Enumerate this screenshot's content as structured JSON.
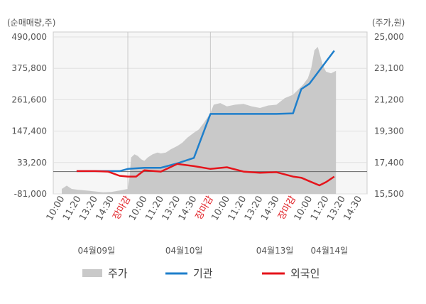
{
  "chart_data": {
    "type": "line",
    "left_axis_title": "(순매매량,주)",
    "right_axis_title": "(주가,원)",
    "y_left": {
      "ticks": [
        "490,000",
        "375,800",
        "261,600",
        "147,400",
        "33,200",
        "-81,000"
      ],
      "tick_values": [
        490000,
        375800,
        261600,
        147400,
        33200,
        -81000
      ],
      "range": [
        -81000,
        490000
      ]
    },
    "y_right": {
      "ticks": [
        "25,000",
        "23,100",
        "21,200",
        "19,300",
        "17,400",
        "15,500"
      ],
      "tick_values": [
        25000,
        23100,
        21200,
        19300,
        17400,
        15500
      ],
      "range": [
        15500,
        25000
      ]
    },
    "x_ticks": [
      {
        "label": "10:00",
        "red": false
      },
      {
        "label": "11:20",
        "red": false
      },
      {
        "label": "13:20",
        "red": false
      },
      {
        "label": "14:30",
        "red": false
      },
      {
        "label": "장마감",
        "red": true
      },
      {
        "label": "10:00",
        "red": false
      },
      {
        "label": "11:20",
        "red": false
      },
      {
        "label": "13:20",
        "red": false
      },
      {
        "label": "14:30",
        "red": false
      },
      {
        "label": "장마감",
        "red": true
      },
      {
        "label": "10:00",
        "red": false
      },
      {
        "label": "11:20",
        "red": false
      },
      {
        "label": "13:20",
        "red": false
      },
      {
        "label": "14:30",
        "red": false
      },
      {
        "label": "장마감",
        "red": true
      },
      {
        "label": "10:00",
        "red": false
      },
      {
        "label": "11:20",
        "red": false
      },
      {
        "label": "13:20",
        "red": false
      },
      {
        "label": "14:30",
        "red": false
      }
    ],
    "dates": [
      "04월09일",
      "04월10일",
      "04월13일",
      "04월14일"
    ],
    "legend": [
      "주가",
      "기관",
      "외국인"
    ],
    "colors": {
      "price": "#c9c9c9",
      "institution": "#1f7fcb",
      "foreign": "#e5141b"
    },
    "institution": {
      "name": "기관",
      "x": [
        0.9,
        2.0,
        3.0,
        3.5,
        4.0,
        4.5,
        5.0,
        6.0,
        7.0,
        8.0,
        9.0,
        10.0,
        11.0,
        12.0,
        13.0,
        14.0,
        14.5,
        15.0,
        16.0,
        16.5
      ],
      "values": [
        2000,
        2000,
        2000,
        2000,
        10000,
        12000,
        14000,
        14000,
        30000,
        50000,
        210000,
        210000,
        210000,
        210000,
        210000,
        212000,
        300000,
        320000,
        400000,
        440000
      ]
    },
    "foreign": {
      "name": "외국인",
      "x": [
        0.9,
        2.0,
        2.8,
        3.5,
        4.0,
        4.5,
        5.0,
        6.0,
        7.0,
        8.0,
        9.0,
        10.0,
        11.0,
        12.0,
        13.0,
        14.0,
        14.5,
        15.0,
        15.6,
        16.0,
        16.5
      ],
      "values": [
        2000,
        2000,
        0,
        -15000,
        -18000,
        -18000,
        5000,
        0,
        28000,
        20000,
        10000,
        16000,
        0,
        -4000,
        -2000,
        -18000,
        -22000,
        -35000,
        -50000,
        -38000,
        -18000
      ]
    },
    "price": {
      "name": "주가",
      "x": [
        0,
        0.3,
        0.6,
        1.0,
        1.5,
        2.0,
        2.5,
        3.0,
        3.5,
        4.0,
        4.1,
        4.2,
        4.4,
        4.6,
        4.8,
        5.0,
        5.2,
        5.5,
        5.8,
        6.0,
        6.3,
        6.6,
        7.0,
        7.3,
        7.6,
        8.0,
        8.3,
        8.6,
        9.0,
        9.2,
        9.6,
        10.0,
        10.5,
        11.0,
        11.5,
        12.0,
        12.5,
        13.0,
        13.5,
        14.0,
        14.3,
        14.6,
        14.9,
        15.1,
        15.3,
        15.5,
        15.8,
        16.0,
        16.3,
        16.6
      ],
      "values": [
        15800,
        16000,
        15800,
        15750,
        15700,
        15650,
        15600,
        15620,
        15700,
        15800,
        16500,
        17700,
        17900,
        17800,
        17600,
        17500,
        17700,
        17900,
        18000,
        17950,
        18000,
        18200,
        18400,
        18600,
        18900,
        19200,
        19400,
        19800,
        20400,
        20900,
        21000,
        20800,
        20900,
        20950,
        20800,
        20700,
        20850,
        20900,
        21300,
        21500,
        21800,
        22100,
        22500,
        23100,
        24200,
        24400,
        23300,
        22900,
        22800,
        22950
      ]
    },
    "grid": true
  }
}
